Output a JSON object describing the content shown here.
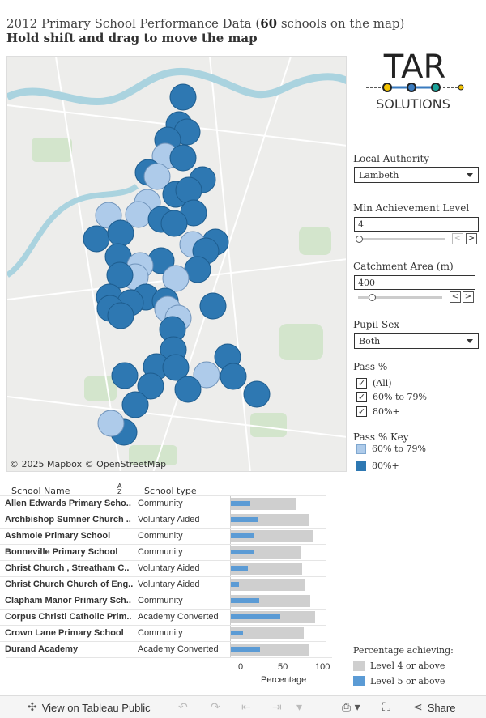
{
  "title_prefix": "2012 Primary School Performance Data (",
  "title_count": "60",
  "title_suffix": " schools on the map)",
  "subtitle": "Hold shift and drag to move the map",
  "map_credit": "© 2025 Mapbox © OpenStreetMap",
  "logo": {
    "top": "TAR",
    "bottom": "SOLUTIONS"
  },
  "filters": {
    "local_authority": {
      "label": "Local Authority",
      "value": "Lambeth"
    },
    "min_achievement": {
      "label": "Min Achievement Level",
      "value": "4"
    },
    "catchment": {
      "label": "Catchment Area (m)",
      "value": "400"
    },
    "pupil_sex": {
      "label": "Pupil Sex",
      "value": "Both"
    },
    "pass": {
      "label": "Pass %",
      "options": [
        {
          "label": "(All)",
          "checked": true
        },
        {
          "label": "60% to 79%",
          "checked": true
        },
        {
          "label": "80%+",
          "checked": true
        }
      ]
    },
    "pass_key": {
      "label": "Pass % Key",
      "items": [
        {
          "label": "60% to 79%",
          "color": "#aecbea"
        },
        {
          "label": "80%+",
          "color": "#2e78b2"
        }
      ]
    }
  },
  "table": {
    "col1": "School Name",
    "sort_icon": "A↓Z",
    "col2": "School type",
    "rows": [
      {
        "name": "Allen Edwards Primary Scho..",
        "type": "Community",
        "l4": 80,
        "l5": 24
      },
      {
        "name": "Archbishop Sumner Church ..",
        "type": "Voluntary Aided",
        "l4": 96,
        "l5": 34
      },
      {
        "name": "Ashmole Primary School",
        "type": "Community",
        "l4": 101,
        "l5": 29
      },
      {
        "name": "Bonneville Primary School",
        "type": "Community",
        "l4": 87,
        "l5": 29
      },
      {
        "name": "Christ Church , Streatham C..",
        "type": "Voluntary Aided",
        "l4": 88,
        "l5": 21
      },
      {
        "name": "Christ Church Church of Eng..",
        "type": "Voluntary Aided",
        "l4": 91,
        "l5": 10
      },
      {
        "name": "Clapham Manor Primary Sch..",
        "type": "Community",
        "l4": 98,
        "l5": 35
      },
      {
        "name": "Corpus Christi Catholic Prim..",
        "type": "Academy Converted",
        "l4": 104,
        "l5": 61
      },
      {
        "name": "Crown Lane Primary School",
        "type": "Community",
        "l4": 90,
        "l5": 15
      },
      {
        "name": "Durand Academy",
        "type": "Academy Converted",
        "l4": 97,
        "l5": 36
      }
    ]
  },
  "axis": {
    "ticks": [
      "0",
      "50",
      "100"
    ],
    "label": "Percentage"
  },
  "legend2": {
    "title": "Percentage achieving:",
    "items": [
      {
        "label": "Level 4 or above",
        "color": "#cfcfcf"
      },
      {
        "label": "Level 5 or above",
        "color": "#5b9bd5"
      }
    ]
  },
  "toolbar": {
    "view_label": "View on Tableau Public",
    "share_label": "Share"
  }
}
